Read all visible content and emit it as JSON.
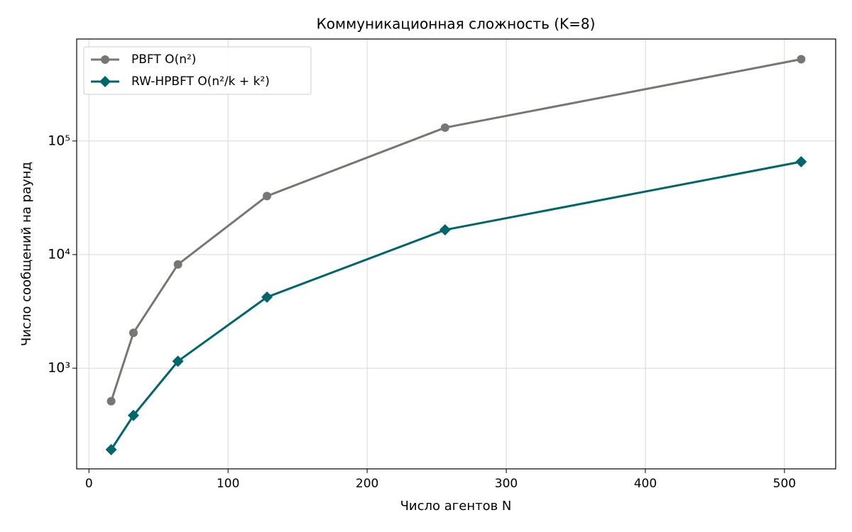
{
  "chart_data": {
    "type": "line",
    "title": "Коммуникационная сложность (K=8)",
    "x_label": "Число агентов N",
    "y_label": "Число сообщений на раунд",
    "x": [
      16,
      32,
      64,
      128,
      256,
      512
    ],
    "series": [
      {
        "name": "PBFT  O(n²)",
        "color": "#777772",
        "marker": "circle",
        "values": [
          512,
          2048,
          8192,
          32768,
          131072,
          524288
        ]
      },
      {
        "name": "RW-HPBFT  O(n²/k + k²)",
        "color": "#00666e",
        "marker": "diamond",
        "values": [
          192,
          384,
          1152,
          4224,
          16512,
          65664
        ]
      }
    ],
    "xlim": [
      -8.8,
      536.8
    ],
    "xticks": [
      0,
      100,
      200,
      300,
      400,
      500
    ],
    "ylim": [
      130,
      790000
    ],
    "yticks": [
      {
        "value": 1000,
        "label": "10³"
      },
      {
        "value": 10000,
        "label": "10⁴"
      },
      {
        "value": 100000,
        "label": "10⁵"
      }
    ],
    "log_y": true,
    "grid": true,
    "legend": "upper-left"
  }
}
